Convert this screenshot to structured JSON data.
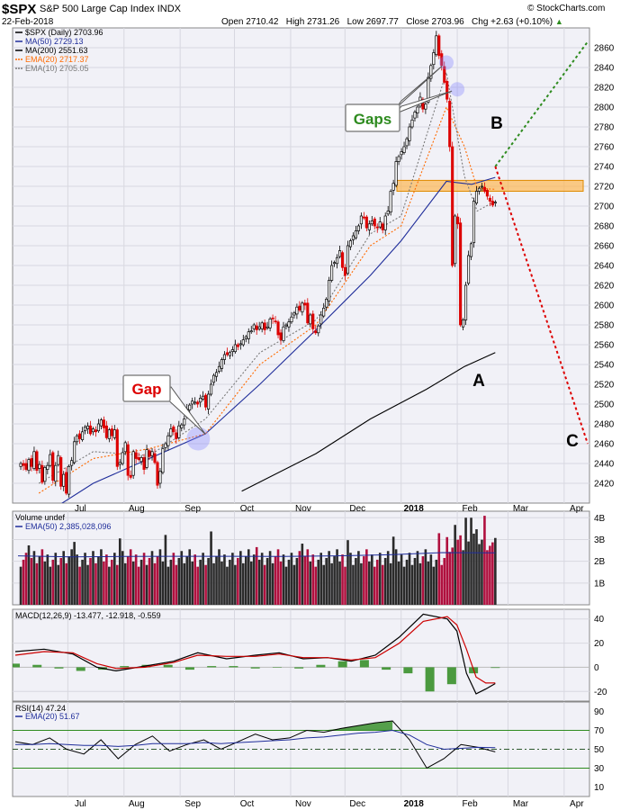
{
  "header": {
    "symbol": "$SPX",
    "name": "S&P 500 Large Cap Index",
    "exchange": "INDX",
    "date": "22-Feb-2018",
    "open": "Open 2710.42",
    "high": "High 2731.26",
    "low": "Low 2697.77",
    "close": "Close 2703.96",
    "chg": "Chg +2.63 (+0.10%)",
    "chg_arrow": "triangle-up-icon",
    "credit": "© StockCharts.com"
  },
  "colors": {
    "price_up": "#000000",
    "price_down": "#dd0000",
    "ma50": "#1f2d9a",
    "ma200": "#000000",
    "ema20": "#ff6a00",
    "ema10": "#7a7a7a",
    "volume_up": "#2a2a2a",
    "volume_down": "#b0103e",
    "macd": "#000000",
    "macd_signal": "#cc0000",
    "macd_hist": "#2e8b1f",
    "rsi": "#000000",
    "rsi_fill": "#2e8b1f",
    "green_projection": "#2e8b1f",
    "red_projection": "#dd0000",
    "resistance_zone": "#ffb347",
    "panel_bg": "#f1f1f7"
  },
  "chart_data": [
    {
      "id": "price",
      "type": "candlestick",
      "title": "$SPX (Daily) 2703.96",
      "ylim": [
        2400,
        2880
      ],
      "y_ticks": [
        2420,
        2440,
        2460,
        2480,
        2500,
        2520,
        2540,
        2560,
        2580,
        2600,
        2620,
        2640,
        2660,
        2680,
        2700,
        2720,
        2740,
        2760,
        2780,
        2800,
        2820,
        2840,
        2860
      ],
      "x_labels": [
        "Jul",
        "Aug",
        "Sep",
        "Oct",
        "Nov",
        "Dec",
        "2018",
        "Feb",
        "Mar",
        "Apr"
      ],
      "legend": [
        {
          "label": "$SPX (Daily) 2703.96",
          "color": "#000000"
        },
        {
          "label": "MA(50) 2729.13",
          "color": "#1f2d9a"
        },
        {
          "label": "MA(200) 2551.63",
          "color": "#000000"
        },
        {
          "label": "EMA(20) 2717.37",
          "color": "#ff6a00"
        },
        {
          "label": "EMA(10) 2705.05",
          "color": "#7a7a7a"
        }
      ],
      "legend_position": "top-left",
      "series": [
        {
          "name": "MA(50)",
          "points": [
            [
              "2017-06-15",
              2385
            ],
            [
              "2017-07-15",
              2420
            ],
            [
              "2017-08-15",
              2445
            ],
            [
              "2017-09-15",
              2470
            ],
            [
              "2017-10-15",
              2520
            ],
            [
              "2017-11-15",
              2575
            ],
            [
              "2017-12-15",
              2630
            ],
            [
              "2018-01-01",
              2665
            ],
            [
              "2018-01-26",
              2725
            ],
            [
              "2018-02-09",
              2722
            ],
            [
              "2018-02-22",
              2729
            ]
          ]
        },
        {
          "name": "MA(200)",
          "points": [
            [
              "2017-10-05",
              2412
            ],
            [
              "2017-11-15",
              2450
            ],
            [
              "2017-12-15",
              2485
            ],
            [
              "2018-01-15",
              2515
            ],
            [
              "2018-02-05",
              2538
            ],
            [
              "2018-02-22",
              2552
            ]
          ]
        },
        {
          "name": "EMA(20)",
          "points": [
            [
              "2017-06-15",
              2410
            ],
            [
              "2017-07-15",
              2445
            ],
            [
              "2017-08-15",
              2455
            ],
            [
              "2017-09-15",
              2470
            ],
            [
              "2017-10-15",
              2540
            ],
            [
              "2017-11-15",
              2580
            ],
            [
              "2017-12-15",
              2660
            ],
            [
              "2018-01-01",
              2680
            ],
            [
              "2018-01-26",
              2800
            ],
            [
              "2018-02-05",
              2760
            ],
            [
              "2018-02-12",
              2718
            ],
            [
              "2018-02-22",
              2717
            ]
          ]
        },
        {
          "name": "EMA(10)",
          "points": [
            [
              "2017-06-15",
              2420
            ],
            [
              "2017-07-15",
              2452
            ],
            [
              "2017-08-15",
              2448
            ],
            [
              "2017-09-15",
              2485
            ],
            [
              "2017-10-15",
              2552
            ],
            [
              "2017-11-15",
              2585
            ],
            [
              "2017-12-15",
              2672
            ],
            [
              "2018-01-01",
              2690
            ],
            [
              "2018-01-26",
              2835
            ],
            [
              "2018-02-05",
              2730
            ],
            [
              "2018-02-12",
              2695
            ],
            [
              "2018-02-22",
              2705
            ]
          ]
        }
      ],
      "candles": {
        "start": "2017-06-05",
        "end": "2018-02-22",
        "close": [
          2440,
          2438,
          2434,
          2444,
          2437,
          2452,
          2433,
          2439,
          2421,
          2436,
          2438,
          2449,
          2423,
          2438,
          2448,
          2417,
          2429,
          2410,
          2437,
          2443,
          2462,
          2468,
          2465,
          2472,
          2477,
          2478,
          2470,
          2475,
          2472,
          2480,
          2484,
          2476,
          2466,
          2474,
          2468,
          2474,
          2437,
          2441,
          2451,
          2461,
          2428,
          2426,
          2452,
          2445,
          2444,
          2446,
          2434,
          2454,
          2447,
          2452,
          2441,
          2418,
          2432,
          2455,
          2460,
          2468,
          2475,
          2472,
          2465,
          2478,
          2479,
          2485,
          2495,
          2499,
          2503,
          2502,
          2500,
          2506,
          2508,
          2497,
          2510,
          2520,
          2529,
          2532,
          2538,
          2545,
          2550,
          2550,
          2552,
          2555,
          2560,
          2558,
          2561,
          2565,
          2568,
          2573,
          2574,
          2580,
          2575,
          2578,
          2582,
          2575,
          2578,
          2586,
          2586,
          2583,
          2570,
          2565,
          2578,
          2580,
          2583,
          2588,
          2592,
          2598,
          2595,
          2602,
          2600,
          2582,
          2590,
          2576,
          2572,
          2579,
          2590,
          2597,
          2606,
          2625,
          2640,
          2643,
          2648,
          2655,
          2638,
          2630,
          2660,
          2665,
          2670,
          2675,
          2680,
          2690,
          2688,
          2678,
          2682,
          2685,
          2680,
          2678,
          2684,
          2676,
          2690,
          2695,
          2715,
          2723,
          2745,
          2750,
          2755,
          2760,
          2768,
          2780,
          2787,
          2795,
          2800,
          2810,
          2798,
          2803,
          2830,
          2842,
          2855,
          2872,
          2852,
          2842,
          2825,
          2808,
          2760,
          2640,
          2690,
          2682,
          2580,
          2585,
          2620,
          2650,
          2662,
          2705,
          2715,
          2718,
          2720,
          2715,
          2710,
          2705,
          2701,
          2704
        ]
      },
      "annotations": [
        {
          "text": "Gaps",
          "color": "#2e8b1f",
          "type": "callout"
        },
        {
          "text": "Gap",
          "color": "#dd0000",
          "type": "callout"
        },
        {
          "text": "A",
          "type": "wave-label"
        },
        {
          "text": "B",
          "type": "wave-label"
        },
        {
          "text": "C",
          "type": "wave-label"
        }
      ],
      "gap_points": [
        [
          "2018-01-26",
          2845
        ],
        [
          "2018-02-01",
          2818
        ],
        [
          "2017-09-11",
          2465
        ]
      ],
      "resistance_zone": [
        2715,
        2726
      ],
      "projections": [
        {
          "name": "green",
          "from": [
            "2018-02-22",
            2740
          ],
          "to": [
            "2018-04-14",
            2866
          ]
        },
        {
          "name": "red",
          "from": [
            "2018-02-22",
            2740
          ],
          "to": [
            "2018-04-14",
            2460
          ]
        }
      ]
    },
    {
      "id": "volume",
      "type": "bar",
      "title": "Volume undef",
      "legend": [
        {
          "label": "EMA(50) 2,385,028,096",
          "color": "#1f2d9a"
        }
      ],
      "ylim": [
        0,
        4300000000
      ],
      "y_ticks": [
        {
          "v": 1000000000,
          "label": "1B"
        },
        {
          "v": 2000000000,
          "label": "2B"
        },
        {
          "v": 3000000000,
          "label": "3B"
        },
        {
          "v": 4000000000,
          "label": "4B"
        }
      ],
      "ema50": [
        2250000000,
        2200000000,
        2220000000,
        2230000000,
        2230000000,
        2220000000,
        2250000000,
        2300000000,
        2400000000,
        2385028096
      ]
    },
    {
      "id": "macd",
      "type": "line",
      "title": "MACD(12,26,9) -13.477, -12.918, -0.559",
      "ylim": [
        -28,
        48
      ],
      "y_ticks": [
        -20,
        0,
        20,
        40
      ],
      "series": [
        {
          "name": "MACD",
          "points": [
            [
              0,
              13
            ],
            [
              0.06,
              15
            ],
            [
              0.12,
              11
            ],
            [
              0.17,
              0
            ],
            [
              0.21,
              -3
            ],
            [
              0.27,
              1
            ],
            [
              0.33,
              5
            ],
            [
              0.38,
              12
            ],
            [
              0.44,
              7
            ],
            [
              0.5,
              10
            ],
            [
              0.55,
              12
            ],
            [
              0.6,
              7
            ],
            [
              0.65,
              8
            ],
            [
              0.7,
              5
            ],
            [
              0.75,
              10
            ],
            [
              0.8,
              25
            ],
            [
              0.85,
              44
            ],
            [
              0.9,
              40
            ],
            [
              0.92,
              30
            ],
            [
              0.94,
              -5
            ],
            [
              0.96,
              -22
            ],
            [
              0.98,
              -18
            ],
            [
              1.0,
              -13.477
            ]
          ]
        },
        {
          "name": "Signal",
          "points": [
            [
              0,
              10
            ],
            [
              0.06,
              13
            ],
            [
              0.12,
              12
            ],
            [
              0.17,
              3
            ],
            [
              0.21,
              -1
            ],
            [
              0.27,
              0
            ],
            [
              0.33,
              4
            ],
            [
              0.38,
              10
            ],
            [
              0.44,
              9
            ],
            [
              0.5,
              9
            ],
            [
              0.55,
              11
            ],
            [
              0.6,
              8
            ],
            [
              0.65,
              8
            ],
            [
              0.7,
              6
            ],
            [
              0.75,
              8
            ],
            [
              0.8,
              20
            ],
            [
              0.85,
              38
            ],
            [
              0.9,
              42
            ],
            [
              0.92,
              35
            ],
            [
              0.94,
              15
            ],
            [
              0.96,
              -8
            ],
            [
              0.98,
              -13
            ],
            [
              1.0,
              -12.918
            ]
          ]
        }
      ],
      "hist": [
        3,
        2,
        -1,
        -3,
        -2,
        1,
        2,
        2,
        -2,
        1,
        1,
        -1,
        0,
        -1,
        2,
        5,
        6,
        -2,
        -5,
        -20,
        -14,
        -5,
        -0.559
      ]
    },
    {
      "id": "rsi",
      "type": "line",
      "title": "RSI(14) 47.24",
      "legend": [
        {
          "label": "EMA(20) 51.67",
          "color": "#1f2d9a"
        }
      ],
      "ylim": [
        0,
        100
      ],
      "y_ticks": [
        10,
        30,
        50,
        70,
        90
      ],
      "levels": [
        70,
        50,
        30
      ],
      "rsi": [
        58,
        55,
        62,
        50,
        45,
        60,
        40,
        55,
        64,
        48,
        55,
        60,
        50,
        58,
        66,
        60,
        62,
        70,
        68,
        72,
        75,
        78,
        80,
        60,
        30,
        40,
        55,
        52,
        47.24
      ],
      "rsi_ema": [
        55,
        55,
        56,
        55,
        54,
        54,
        53,
        54,
        56,
        56,
        56,
        57,
        56,
        57,
        58,
        59,
        60,
        62,
        63,
        65,
        67,
        68,
        70,
        65,
        55,
        50,
        51,
        52,
        51.67
      ]
    }
  ]
}
